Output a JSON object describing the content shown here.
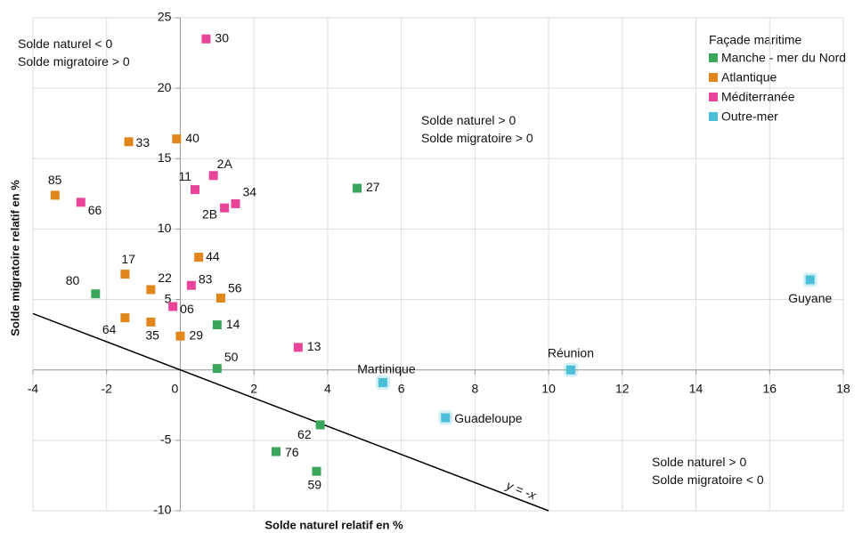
{
  "chart_data": {
    "type": "scatter",
    "xlabel": "Solde naturel relatif en %",
    "ylabel": "Solde migratoire relatif en %",
    "xlim": [
      -4,
      18
    ],
    "xticks": [
      -4,
      -2,
      0,
      2,
      4,
      6,
      8,
      10,
      12,
      14,
      16,
      18
    ],
    "ylim": [
      -10,
      25
    ],
    "yticks": [
      -10,
      -5,
      0,
      5,
      10,
      15,
      20,
      25
    ],
    "grid": true,
    "legend_title": "Façade maritime",
    "legend": "upper right",
    "reference_line": {
      "label": "y = -x",
      "slope": -1
    },
    "annotations": [
      {
        "text": "Solde naturel < 0\nSolde migratoire > 0"
      },
      {
        "text": "Solde naturel > 0\nSolde migratoire > 0"
      },
      {
        "text": "Solde naturel > 0\nSolde migratoire < 0"
      }
    ],
    "series": [
      {
        "name": "Manche - mer du Nord",
        "color": "#3aa65b",
        "x": [
          -2.3,
          4.8,
          1.0,
          1.0,
          3.8,
          2.6,
          3.7
        ],
        "values": [
          5.4,
          12.9,
          3.2,
          0.1,
          -3.9,
          -5.8,
          -7.2
        ],
        "labels": [
          "80",
          "27",
          "14",
          "50",
          "62",
          "76",
          "59"
        ]
      },
      {
        "name": "Atlantique",
        "color": "#e0861a",
        "x": [
          -3.4,
          -1.4,
          -0.1,
          -1.5,
          -0.8,
          0.5,
          1.1,
          -1.5,
          -0.8,
          0.0
        ],
        "values": [
          12.4,
          16.2,
          16.4,
          6.8,
          5.7,
          8.0,
          5.1,
          3.7,
          3.4,
          2.4
        ],
        "labels": [
          "85",
          "33",
          "40",
          "17",
          "22",
          "44",
          "56",
          "64",
          "35",
          "29"
        ]
      },
      {
        "name": "Méditerranée",
        "color": "#e8449a",
        "x": [
          0.7,
          -2.7,
          0.4,
          0.9,
          1.5,
          1.2,
          0.3,
          -0.2,
          3.2
        ],
        "values": [
          23.5,
          11.9,
          12.8,
          13.8,
          11.8,
          11.5,
          6.0,
          4.5,
          1.6
        ],
        "labels": [
          "30",
          "66",
          "11",
          "2A",
          "34",
          "2B",
          "83",
          "06",
          "13"
        ]
      },
      {
        "name": "Outre-mer",
        "color": "#4bbfd8",
        "x": [
          17.1,
          10.6,
          5.5,
          7.2
        ],
        "values": [
          6.4,
          0.0,
          -0.9,
          -3.4
        ],
        "labels": [
          "Guyane",
          "Réunion",
          "Martinique",
          "Guadeloupe"
        ]
      }
    ]
  }
}
